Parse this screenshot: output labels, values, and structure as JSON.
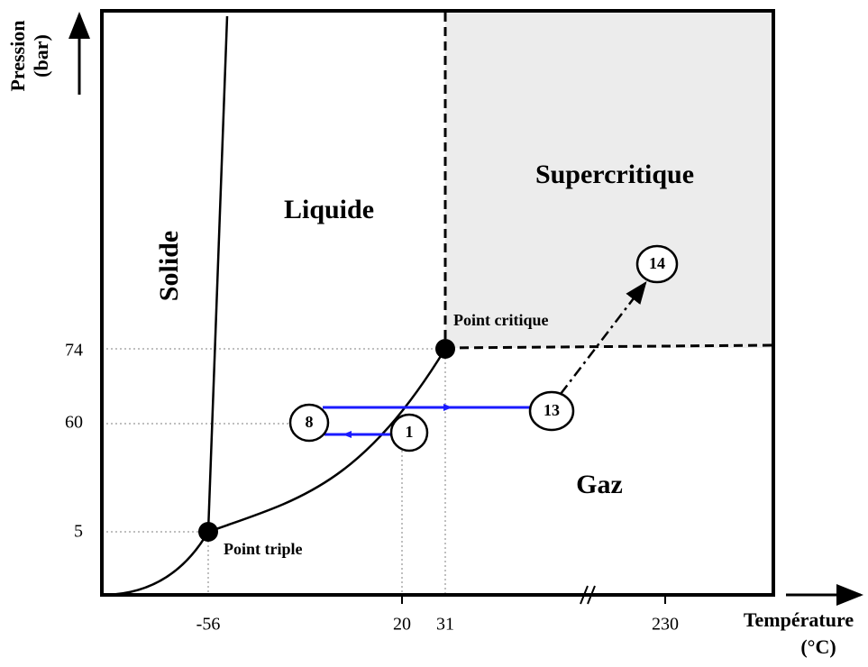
{
  "axes": {
    "y_label": [
      "Pression",
      "(bar)"
    ],
    "x_label": [
      "Température",
      "(°C)"
    ],
    "y_ticks": [
      "74",
      "60",
      "5"
    ],
    "x_ticks": [
      "-56",
      "20",
      "31",
      "230"
    ]
  },
  "regions": {
    "solid": "Solide",
    "liquid": "Liquide",
    "supercritical": "Supercritique",
    "gas": "Gaz"
  },
  "points": {
    "critical": "Point critique",
    "triple": "Point triple"
  },
  "steps": [
    "8",
    "1",
    "13",
    "14"
  ]
}
